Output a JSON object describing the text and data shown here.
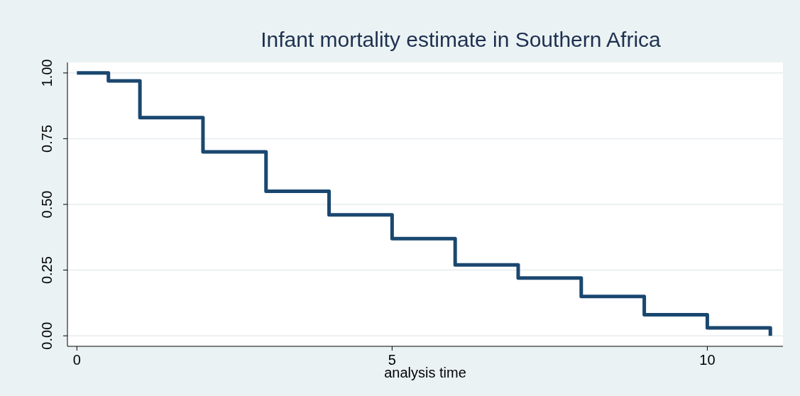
{
  "chart_data": {
    "type": "step",
    "title": "Infant mortality estimate in Southern Africa",
    "xlabel": "analysis time",
    "x": [
      0,
      0.5,
      1,
      2,
      3,
      4,
      5,
      6,
      7,
      8,
      9,
      10,
      11
    ],
    "series": [
      {
        "color": "#1a476f",
        "values": [
          1,
          0.97,
          0.83,
          0.7,
          0.55,
          0.46,
          0.37,
          0.27,
          0.22,
          0.15,
          0.08,
          0.03,
          0
        ]
      }
    ],
    "xlim": [
      -0.15,
      11.2
    ],
    "ylim": [
      -0.04,
      1.04
    ],
    "xticks": [
      0,
      5,
      10
    ],
    "yticks": [
      {
        "value": 0,
        "label": "0.00"
      },
      {
        "value": 0.25,
        "label": "0.25"
      },
      {
        "value": 0.5,
        "label": "0.50"
      },
      {
        "value": 0.75,
        "label": "0.75"
      },
      {
        "value": 1,
        "label": "1.00"
      }
    ],
    "grid": "y"
  }
}
